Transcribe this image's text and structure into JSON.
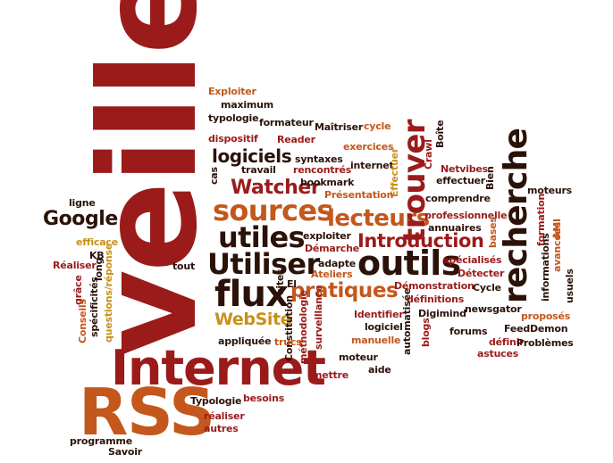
{
  "title": "",
  "words": [
    "veille",
    "Internet",
    "RSS",
    "outils",
    "recherche",
    "Utiliser",
    "flux",
    "utiles",
    "sources",
    "lecteurs",
    "trouver",
    "Introduction",
    "logiciels",
    "Google",
    "Watcher",
    "pratiques",
    "WebSite",
    "Exploiter",
    "maximum",
    "typologie",
    "dispositif",
    "formateur",
    "Reader",
    "Maîtriser",
    "cycle",
    "exercices",
    "syntaxes",
    "Crawl",
    "Boîte",
    "Netvibes",
    "internet",
    "travail",
    "rencontrés",
    "bookmark",
    "effectuer",
    "Bien",
    "Effectuer",
    "Présentation",
    "moteurs",
    "comprendre",
    "professionnelle",
    "annuaires",
    "formation",
    "bases",
    "ligne",
    "cas",
    "efficace",
    "exploiter",
    "Démarche",
    "adapte",
    "Ateliers",
    "spécialisés",
    "Détecter",
    "informations",
    "avancées",
    "usuels",
    "AMI",
    "KB",
    "long",
    "grâce",
    "Réaliser",
    "Conseils",
    "spécificités",
    "questions/réponse",
    "El",
    "sites",
    "tout",
    "Constitution",
    "méthodologie",
    "surveillance",
    "Identifier",
    "logiciel",
    "manuelle",
    "automatisée",
    "Démonstration",
    "définitions",
    "Cycle",
    "Digimind",
    "newsgator",
    "proposés",
    "blogs",
    "forums",
    "FeedDemon",
    "définir",
    "Problèmes",
    "astuces",
    "moteur",
    "aide",
    "mettre",
    "appliquée",
    "trucs",
    "Typologie",
    "besoins",
    "réaliser",
    "autres",
    "programme",
    "Savoir"
  ]
}
